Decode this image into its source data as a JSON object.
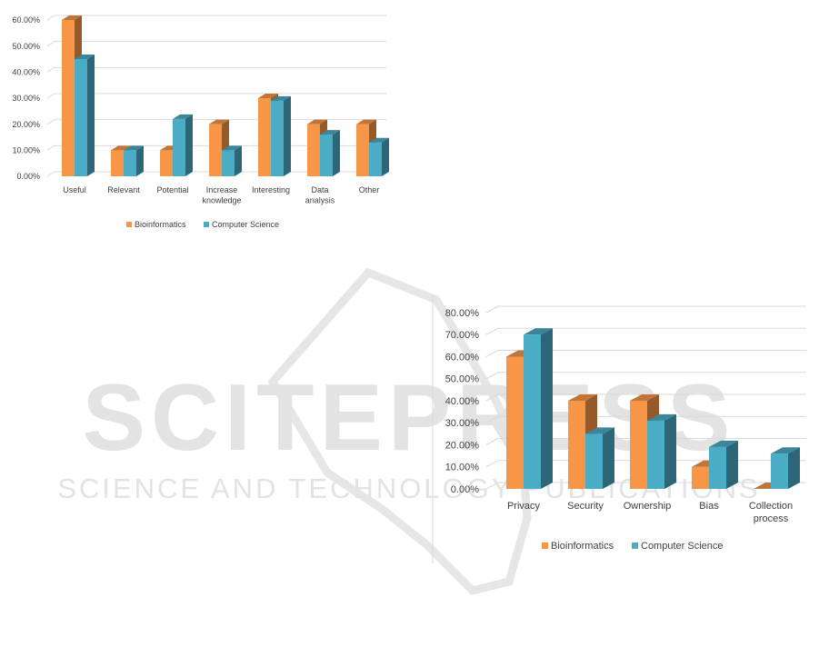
{
  "colors": {
    "bioinformatics": "#f79646",
    "computer_science": "#4bacc6",
    "grid": "#d9d9d9",
    "watermark": "#e3e3e3"
  },
  "watermark": {
    "main_text": "SCITEPRESS",
    "sub_text": "SCIENCE AND TECHNOLOGY PUBLICATIONS"
  },
  "chart_data": [
    {
      "type": "bar",
      "categories": [
        "Useful",
        "Relevant",
        "Potential",
        "Increase knowledge",
        "Interesting",
        "Data analysis",
        "Other"
      ],
      "category_lines": [
        [
          "Useful"
        ],
        [
          "Relevant"
        ],
        [
          "Potential"
        ],
        [
          "Increase",
          "knowledge"
        ],
        [
          "Interesting"
        ],
        [
          "Data",
          "analysis"
        ],
        [
          "Other"
        ]
      ],
      "series": [
        {
          "name": "Bioinformatics",
          "values": [
            60,
            10,
            10,
            20,
            30,
            20,
            20
          ]
        },
        {
          "name": "Computer Science",
          "values": [
            45,
            10,
            22,
            10,
            29,
            16,
            13
          ]
        }
      ],
      "yticks": [
        "0.00%",
        "10.00%",
        "20.00%",
        "30.00%",
        "40.00%",
        "50.00%",
        "60.00%"
      ],
      "ylim": [
        0,
        60
      ],
      "legend_position": "bottom",
      "three_d": true,
      "grid": true
    },
    {
      "type": "bar",
      "categories": [
        "Privacy",
        "Security",
        "Ownership",
        "Bias",
        "Collection process"
      ],
      "category_lines": [
        [
          "Privacy"
        ],
        [
          "Security"
        ],
        [
          "Ownership"
        ],
        [
          "Bias"
        ],
        [
          "Collection",
          "process"
        ]
      ],
      "series": [
        {
          "name": "Bioinformatics",
          "values": [
            60,
            40,
            40,
            10,
            0
          ]
        },
        {
          "name": "Computer Science",
          "values": [
            70,
            25,
            31,
            19,
            16
          ]
        }
      ],
      "yticks": [
        "0.00%",
        "10.00%",
        "20.00%",
        "30.00%",
        "40.00%",
        "50.00%",
        "60.00%",
        "70.00%",
        "80.00%"
      ],
      "ylim": [
        0,
        80
      ],
      "legend_position": "bottom",
      "three_d": true,
      "grid": true
    }
  ]
}
